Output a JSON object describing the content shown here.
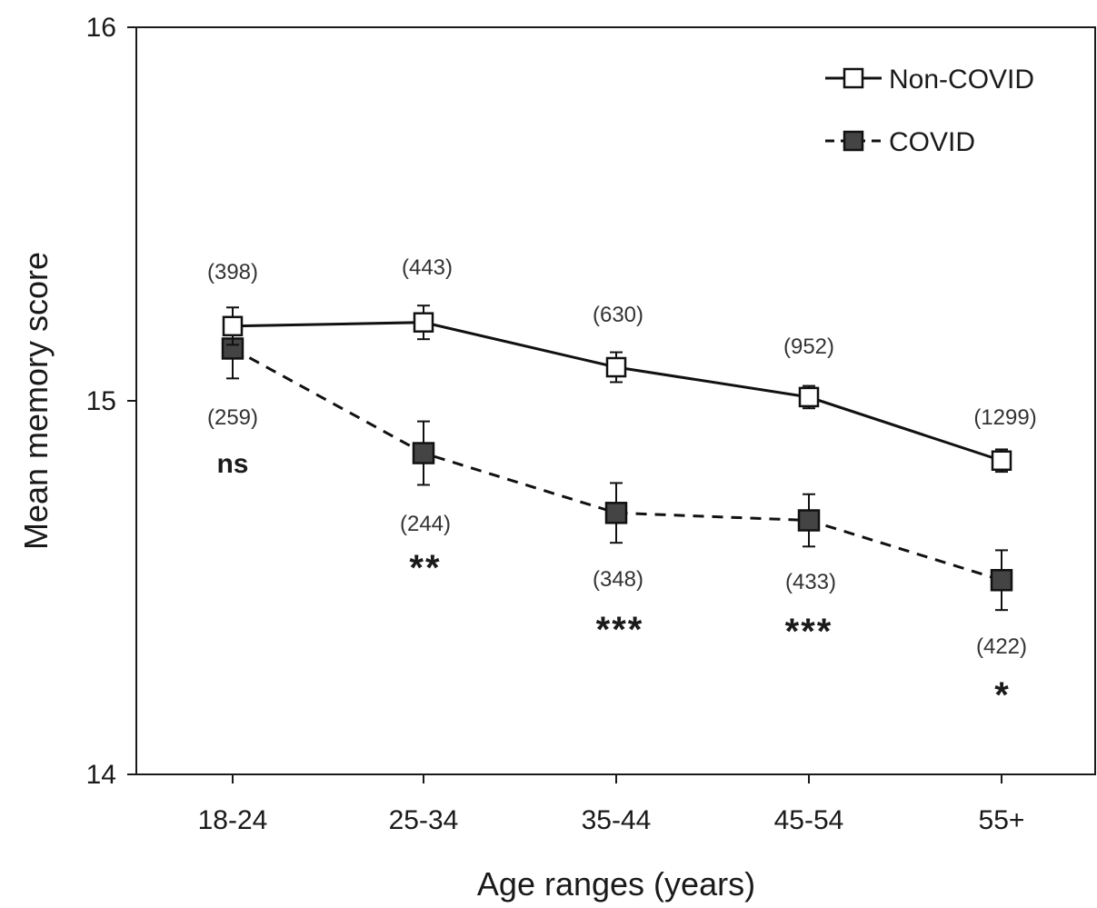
{
  "chart_data": {
    "type": "line",
    "title": "",
    "xlabel": "Age ranges (years)",
    "ylabel": "Mean memory score",
    "categories": [
      "18-24",
      "25-34",
      "35-44",
      "45-54",
      "55+"
    ],
    "ylim": [
      14,
      16
    ],
    "yticks": [
      "14",
      "15",
      "16"
    ],
    "legend_position": "top-right",
    "grid": false,
    "series": [
      {
        "name": "Non-COVID",
        "line_style": "solid",
        "marker": "open-square",
        "color": "#111111",
        "values": [
          15.2,
          15.21,
          15.09,
          15.01,
          14.84
        ],
        "error": [
          0.05,
          0.045,
          0.04,
          0.03,
          0.03
        ],
        "n_labels": [
          "(398)",
          "(443)",
          "(630)",
          "(952)",
          "(1299)"
        ]
      },
      {
        "name": "COVID",
        "line_style": "dashed",
        "marker": "filled-square",
        "color": "#444444",
        "values": [
          15.14,
          14.86,
          14.7,
          14.68,
          14.52
        ],
        "error": [
          0.08,
          0.085,
          0.08,
          0.07,
          0.08
        ],
        "n_labels": [
          "(259)",
          "(244)",
          "(348)",
          "(433)",
          "(422)"
        ]
      }
    ],
    "significance": [
      "ns",
      "**",
      "***",
      "***",
      "*"
    ]
  }
}
